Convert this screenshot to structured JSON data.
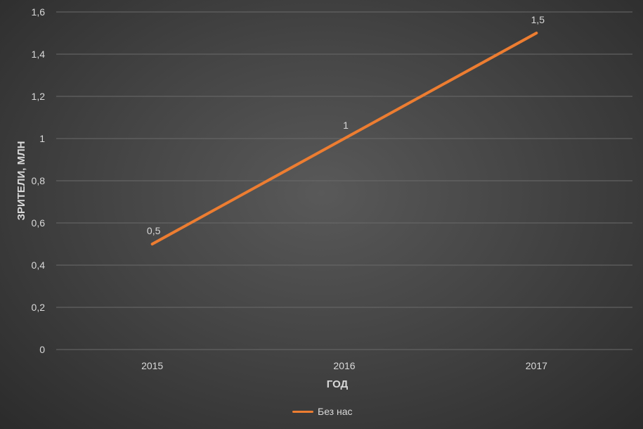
{
  "chart_data": {
    "type": "line",
    "categories": [
      "2015",
      "2016",
      "2017"
    ],
    "series": [
      {
        "name": "Без нас",
        "values": [
          0.5,
          1,
          1.5
        ],
        "data_labels": [
          "0,5",
          "1",
          "1,5"
        ],
        "color": "#ed7d31"
      }
    ],
    "title": "",
    "xlabel": "ГОД",
    "ylabel": "ЗРИТЕЛИ, МЛН",
    "ylim": [
      0,
      1.6
    ],
    "yticks": [
      0,
      0.2,
      0.4,
      0.6,
      0.8,
      1,
      1.2,
      1.4,
      1.6
    ],
    "ytick_labels": [
      "0",
      "0,2",
      "0,4",
      "0,6",
      "0,8",
      "1",
      "1,2",
      "1,4",
      "1,6"
    ],
    "grid": true,
    "legend_position": "bottom",
    "background": "#404040"
  }
}
